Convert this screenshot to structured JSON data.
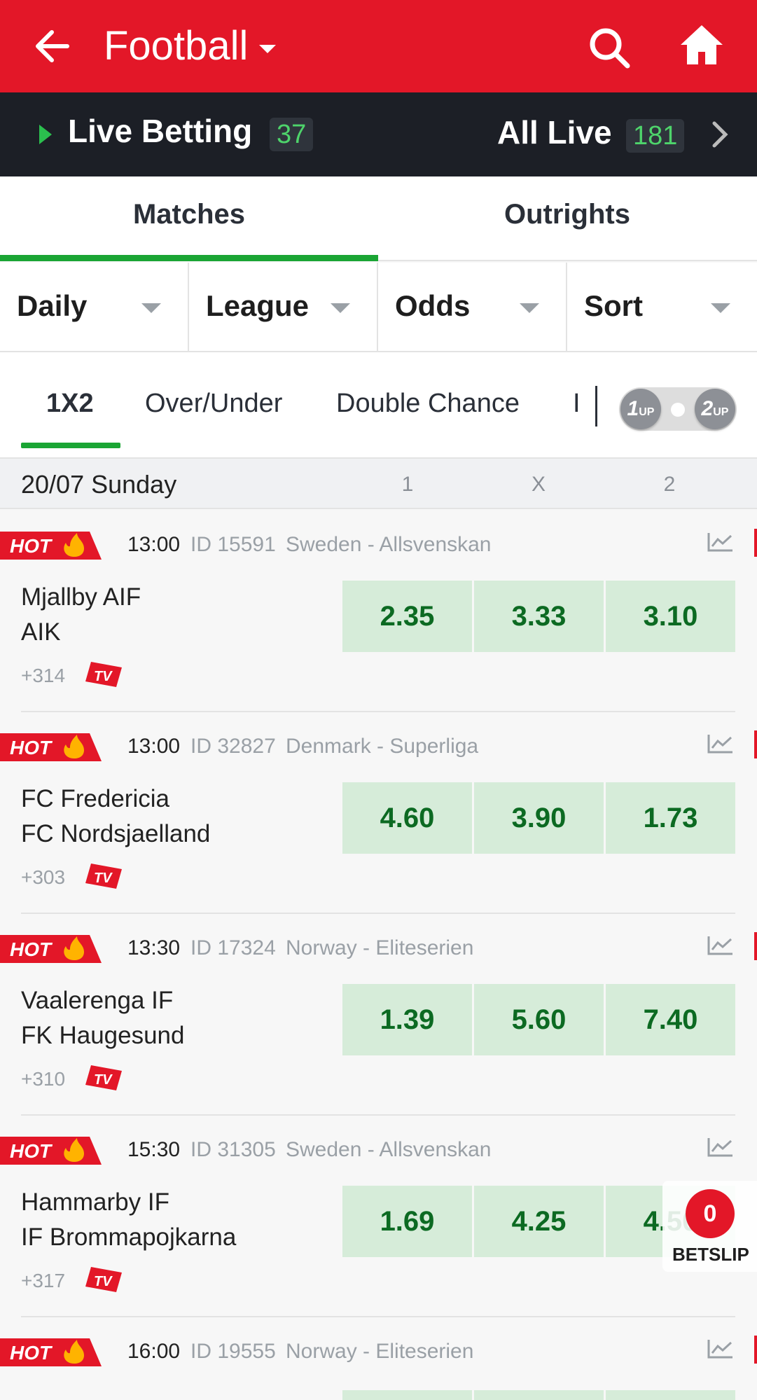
{
  "header": {
    "title": "Football"
  },
  "live": {
    "label": "Live Betting",
    "count": "37",
    "all_label": "All Live",
    "all_count": "181"
  },
  "tabs": [
    {
      "label": "Matches"
    },
    {
      "label": "Outrights"
    }
  ],
  "filters": [
    {
      "label": "Daily"
    },
    {
      "label": "League"
    },
    {
      "label": "Odds"
    },
    {
      "label": "Sort"
    }
  ],
  "markets": [
    {
      "label": "1X2"
    },
    {
      "label": "Over/Under"
    },
    {
      "label": "Double Chance"
    },
    {
      "label": "I"
    }
  ],
  "toggle": {
    "left": "1",
    "left_sub": "UP",
    "right": "2",
    "right_sub": "UP"
  },
  "day": {
    "label": "20/07 Sunday",
    "cols": [
      "1",
      "X",
      "2"
    ]
  },
  "hot_label": "HOT",
  "tv_label": "TV",
  "matches": [
    {
      "time": "13:00",
      "id": "ID 15591",
      "league": "Sweden - Allsvenskan",
      "home": "Mjallby AIF",
      "away": "AIK",
      "more": "+314",
      "odds": [
        "2.35",
        "3.33",
        "3.10"
      ]
    },
    {
      "time": "13:00",
      "id": "ID 32827",
      "league": "Denmark - Superliga",
      "home": "FC Fredericia",
      "away": "FC Nordsjaelland",
      "more": "+303",
      "odds": [
        "4.60",
        "3.90",
        "1.73"
      ]
    },
    {
      "time": "13:30",
      "id": "ID 17324",
      "league": "Norway - Eliteserien",
      "home": "Vaalerenga IF",
      "away": "FK Haugesund",
      "more": "+310",
      "odds": [
        "1.39",
        "5.60",
        "7.40"
      ]
    },
    {
      "time": "15:30",
      "id": "ID 31305",
      "league": "Sweden - Allsvenskan",
      "home": "Hammarby IF",
      "away": "IF Brommapojkarna",
      "more": "+317",
      "odds": [
        "1.69",
        "4.25",
        "4.50"
      ]
    },
    {
      "time": "16:00",
      "id": "ID 19555",
      "league": "Norway - Eliteserien",
      "home": "",
      "away": "",
      "more": "",
      "odds": [
        "",
        "",
        ""
      ]
    }
  ],
  "betslip": {
    "count": "0",
    "label": "BETSLIP"
  },
  "colors": {
    "brand": "#e31728",
    "accent": "#1aa534",
    "odds_bg": "#d6ecd9",
    "odds_text": "#0c6a22"
  }
}
